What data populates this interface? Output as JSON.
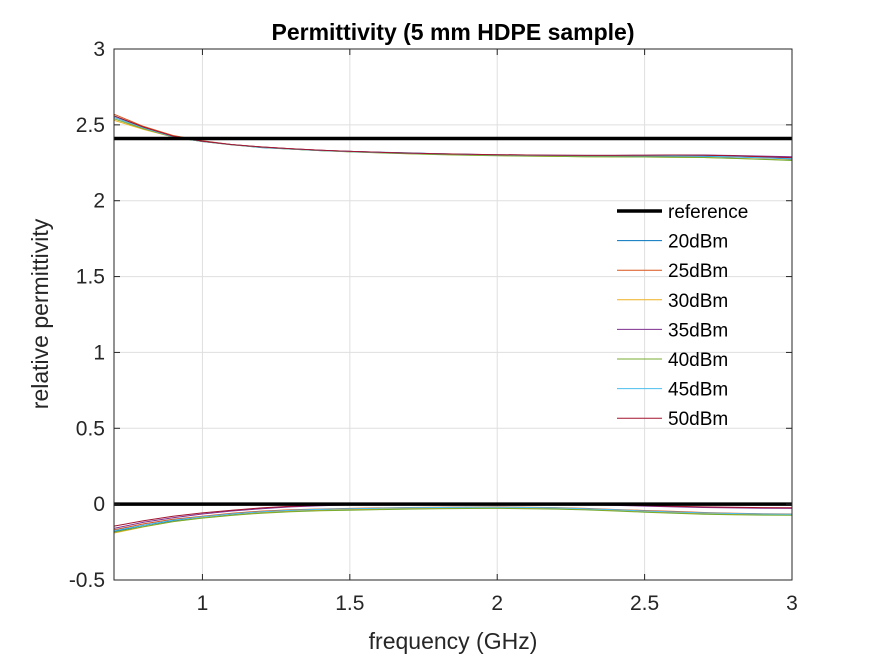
{
  "chart_data": {
    "type": "line",
    "title": "Permittivity (5 mm HDPE sample)",
    "xlabel": "frequency (GHz)",
    "ylabel": "relative permittivity",
    "xlim": [
      0.7,
      3.0
    ],
    "ylim": [
      -0.5,
      3.0
    ],
    "xticks": [
      1,
      1.5,
      2,
      2.5,
      3
    ],
    "xtick_labels": [
      "1",
      "1.5",
      "2",
      "2.5",
      "3"
    ],
    "yticks": [
      -0.5,
      0,
      0.5,
      1,
      1.5,
      2,
      2.5,
      3
    ],
    "ytick_labels": [
      "-0.5",
      "0",
      "0.5",
      "1",
      "1.5",
      "2",
      "2.5",
      "3"
    ],
    "grid": true,
    "legend_position": "right",
    "x": [
      0.7,
      0.8,
      0.9,
      1.0,
      1.1,
      1.2,
      1.3,
      1.4,
      1.5,
      1.6,
      1.7,
      1.8,
      1.9,
      2.0,
      2.1,
      2.2,
      2.3,
      2.4,
      2.5,
      2.6,
      2.7,
      2.8,
      2.9,
      3.0
    ],
    "reference": {
      "name": "reference",
      "color": "#000000",
      "values": [
        2.41,
        0.0
      ]
    },
    "series": [
      {
        "name": "20dBm",
        "color": "#0072bd",
        "real": [
          2.56,
          2.48,
          2.42,
          2.39,
          2.37,
          2.35,
          2.34,
          2.33,
          2.325,
          2.32,
          2.315,
          2.31,
          2.305,
          2.3,
          2.298,
          2.296,
          2.295,
          2.294,
          2.293,
          2.293,
          2.292,
          2.288,
          2.283,
          2.275
        ],
        "imag": [
          -0.18,
          -0.14,
          -0.11,
          -0.09,
          -0.07,
          -0.055,
          -0.045,
          -0.04,
          -0.035,
          -0.03,
          -0.027,
          -0.025,
          -0.024,
          -0.023,
          -0.024,
          -0.027,
          -0.032,
          -0.04,
          -0.048,
          -0.055,
          -0.062,
          -0.066,
          -0.068,
          -0.07
        ]
      },
      {
        "name": "25dBm",
        "color": "#d95319",
        "real": [
          2.57,
          2.49,
          2.43,
          2.395,
          2.37,
          2.355,
          2.343,
          2.333,
          2.325,
          2.318,
          2.312,
          2.308,
          2.304,
          2.301,
          2.299,
          2.297,
          2.296,
          2.296,
          2.297,
          2.298,
          2.297,
          2.292,
          2.286,
          2.28
        ],
        "imag": [
          -0.17,
          -0.13,
          -0.1,
          -0.08,
          -0.06,
          -0.046,
          -0.037,
          -0.032,
          -0.028,
          -0.025,
          -0.022,
          -0.02,
          -0.019,
          -0.018,
          -0.02,
          -0.023,
          -0.028,
          -0.035,
          -0.042,
          -0.048,
          -0.055,
          -0.06,
          -0.063,
          -0.065
        ]
      },
      {
        "name": "30dBm",
        "color": "#edb120",
        "real": [
          2.53,
          2.47,
          2.42,
          2.39,
          2.37,
          2.353,
          2.341,
          2.331,
          2.323,
          2.316,
          2.31,
          2.305,
          2.301,
          2.298,
          2.295,
          2.292,
          2.29,
          2.289,
          2.288,
          2.287,
          2.285,
          2.28,
          2.274,
          2.268
        ],
        "imag": [
          -0.19,
          -0.15,
          -0.115,
          -0.09,
          -0.072,
          -0.057,
          -0.047,
          -0.041,
          -0.036,
          -0.032,
          -0.029,
          -0.027,
          -0.026,
          -0.025,
          -0.027,
          -0.03,
          -0.035,
          -0.042,
          -0.05,
          -0.057,
          -0.063,
          -0.067,
          -0.069,
          -0.071
        ]
      },
      {
        "name": "35dBm",
        "color": "#7e2f8e",
        "real": [
          2.55,
          2.48,
          2.425,
          2.392,
          2.37,
          2.354,
          2.342,
          2.332,
          2.325,
          2.319,
          2.314,
          2.31,
          2.306,
          2.303,
          2.301,
          2.3,
          2.299,
          2.299,
          2.3,
          2.301,
          2.301,
          2.298,
          2.294,
          2.29
        ],
        "imag": [
          -0.16,
          -0.12,
          -0.09,
          -0.065,
          -0.045,
          -0.03,
          -0.018,
          -0.01,
          -0.005,
          -0.002,
          0.0,
          0.001,
          0.002,
          0.002,
          0.001,
          -0.001,
          -0.004,
          -0.008,
          -0.013,
          -0.018,
          -0.022,
          -0.025,
          -0.027,
          -0.028
        ]
      },
      {
        "name": "40dBm",
        "color": "#77ac30",
        "real": [
          2.54,
          2.475,
          2.42,
          2.39,
          2.368,
          2.352,
          2.34,
          2.33,
          2.322,
          2.315,
          2.309,
          2.304,
          2.3,
          2.297,
          2.294,
          2.292,
          2.29,
          2.289,
          2.288,
          2.287,
          2.285,
          2.279,
          2.272,
          2.265
        ],
        "imag": [
          -0.185,
          -0.148,
          -0.115,
          -0.092,
          -0.074,
          -0.06,
          -0.05,
          -0.044,
          -0.04,
          -0.036,
          -0.033,
          -0.031,
          -0.029,
          -0.028,
          -0.03,
          -0.033,
          -0.038,
          -0.045,
          -0.053,
          -0.06,
          -0.066,
          -0.07,
          -0.072,
          -0.073
        ]
      },
      {
        "name": "45dBm",
        "color": "#4dbeee",
        "real": [
          2.55,
          2.48,
          2.422,
          2.39,
          2.369,
          2.353,
          2.341,
          2.331,
          2.324,
          2.318,
          2.313,
          2.309,
          2.305,
          2.302,
          2.3,
          2.298,
          2.297,
          2.296,
          2.296,
          2.296,
          2.295,
          2.29,
          2.284,
          2.278
        ],
        "imag": [
          -0.175,
          -0.138,
          -0.105,
          -0.083,
          -0.064,
          -0.05,
          -0.04,
          -0.034,
          -0.03,
          -0.027,
          -0.024,
          -0.022,
          -0.021,
          -0.02,
          -0.022,
          -0.025,
          -0.03,
          -0.037,
          -0.045,
          -0.052,
          -0.058,
          -0.062,
          -0.065,
          -0.067
        ]
      },
      {
        "name": "50dBm",
        "color": "#a2142f",
        "real": [
          2.56,
          2.485,
          2.425,
          2.392,
          2.37,
          2.354,
          2.342,
          2.332,
          2.325,
          2.319,
          2.314,
          2.31,
          2.306,
          2.303,
          2.301,
          2.3,
          2.299,
          2.299,
          2.3,
          2.301,
          2.3,
          2.296,
          2.29,
          2.284
        ],
        "imag": [
          -0.145,
          -0.11,
          -0.08,
          -0.058,
          -0.04,
          -0.025,
          -0.014,
          -0.006,
          -0.001,
          0.002,
          0.004,
          0.005,
          0.006,
          0.006,
          0.005,
          0.003,
          0.0,
          -0.004,
          -0.009,
          -0.014,
          -0.018,
          -0.021,
          -0.023,
          -0.024
        ]
      }
    ]
  }
}
